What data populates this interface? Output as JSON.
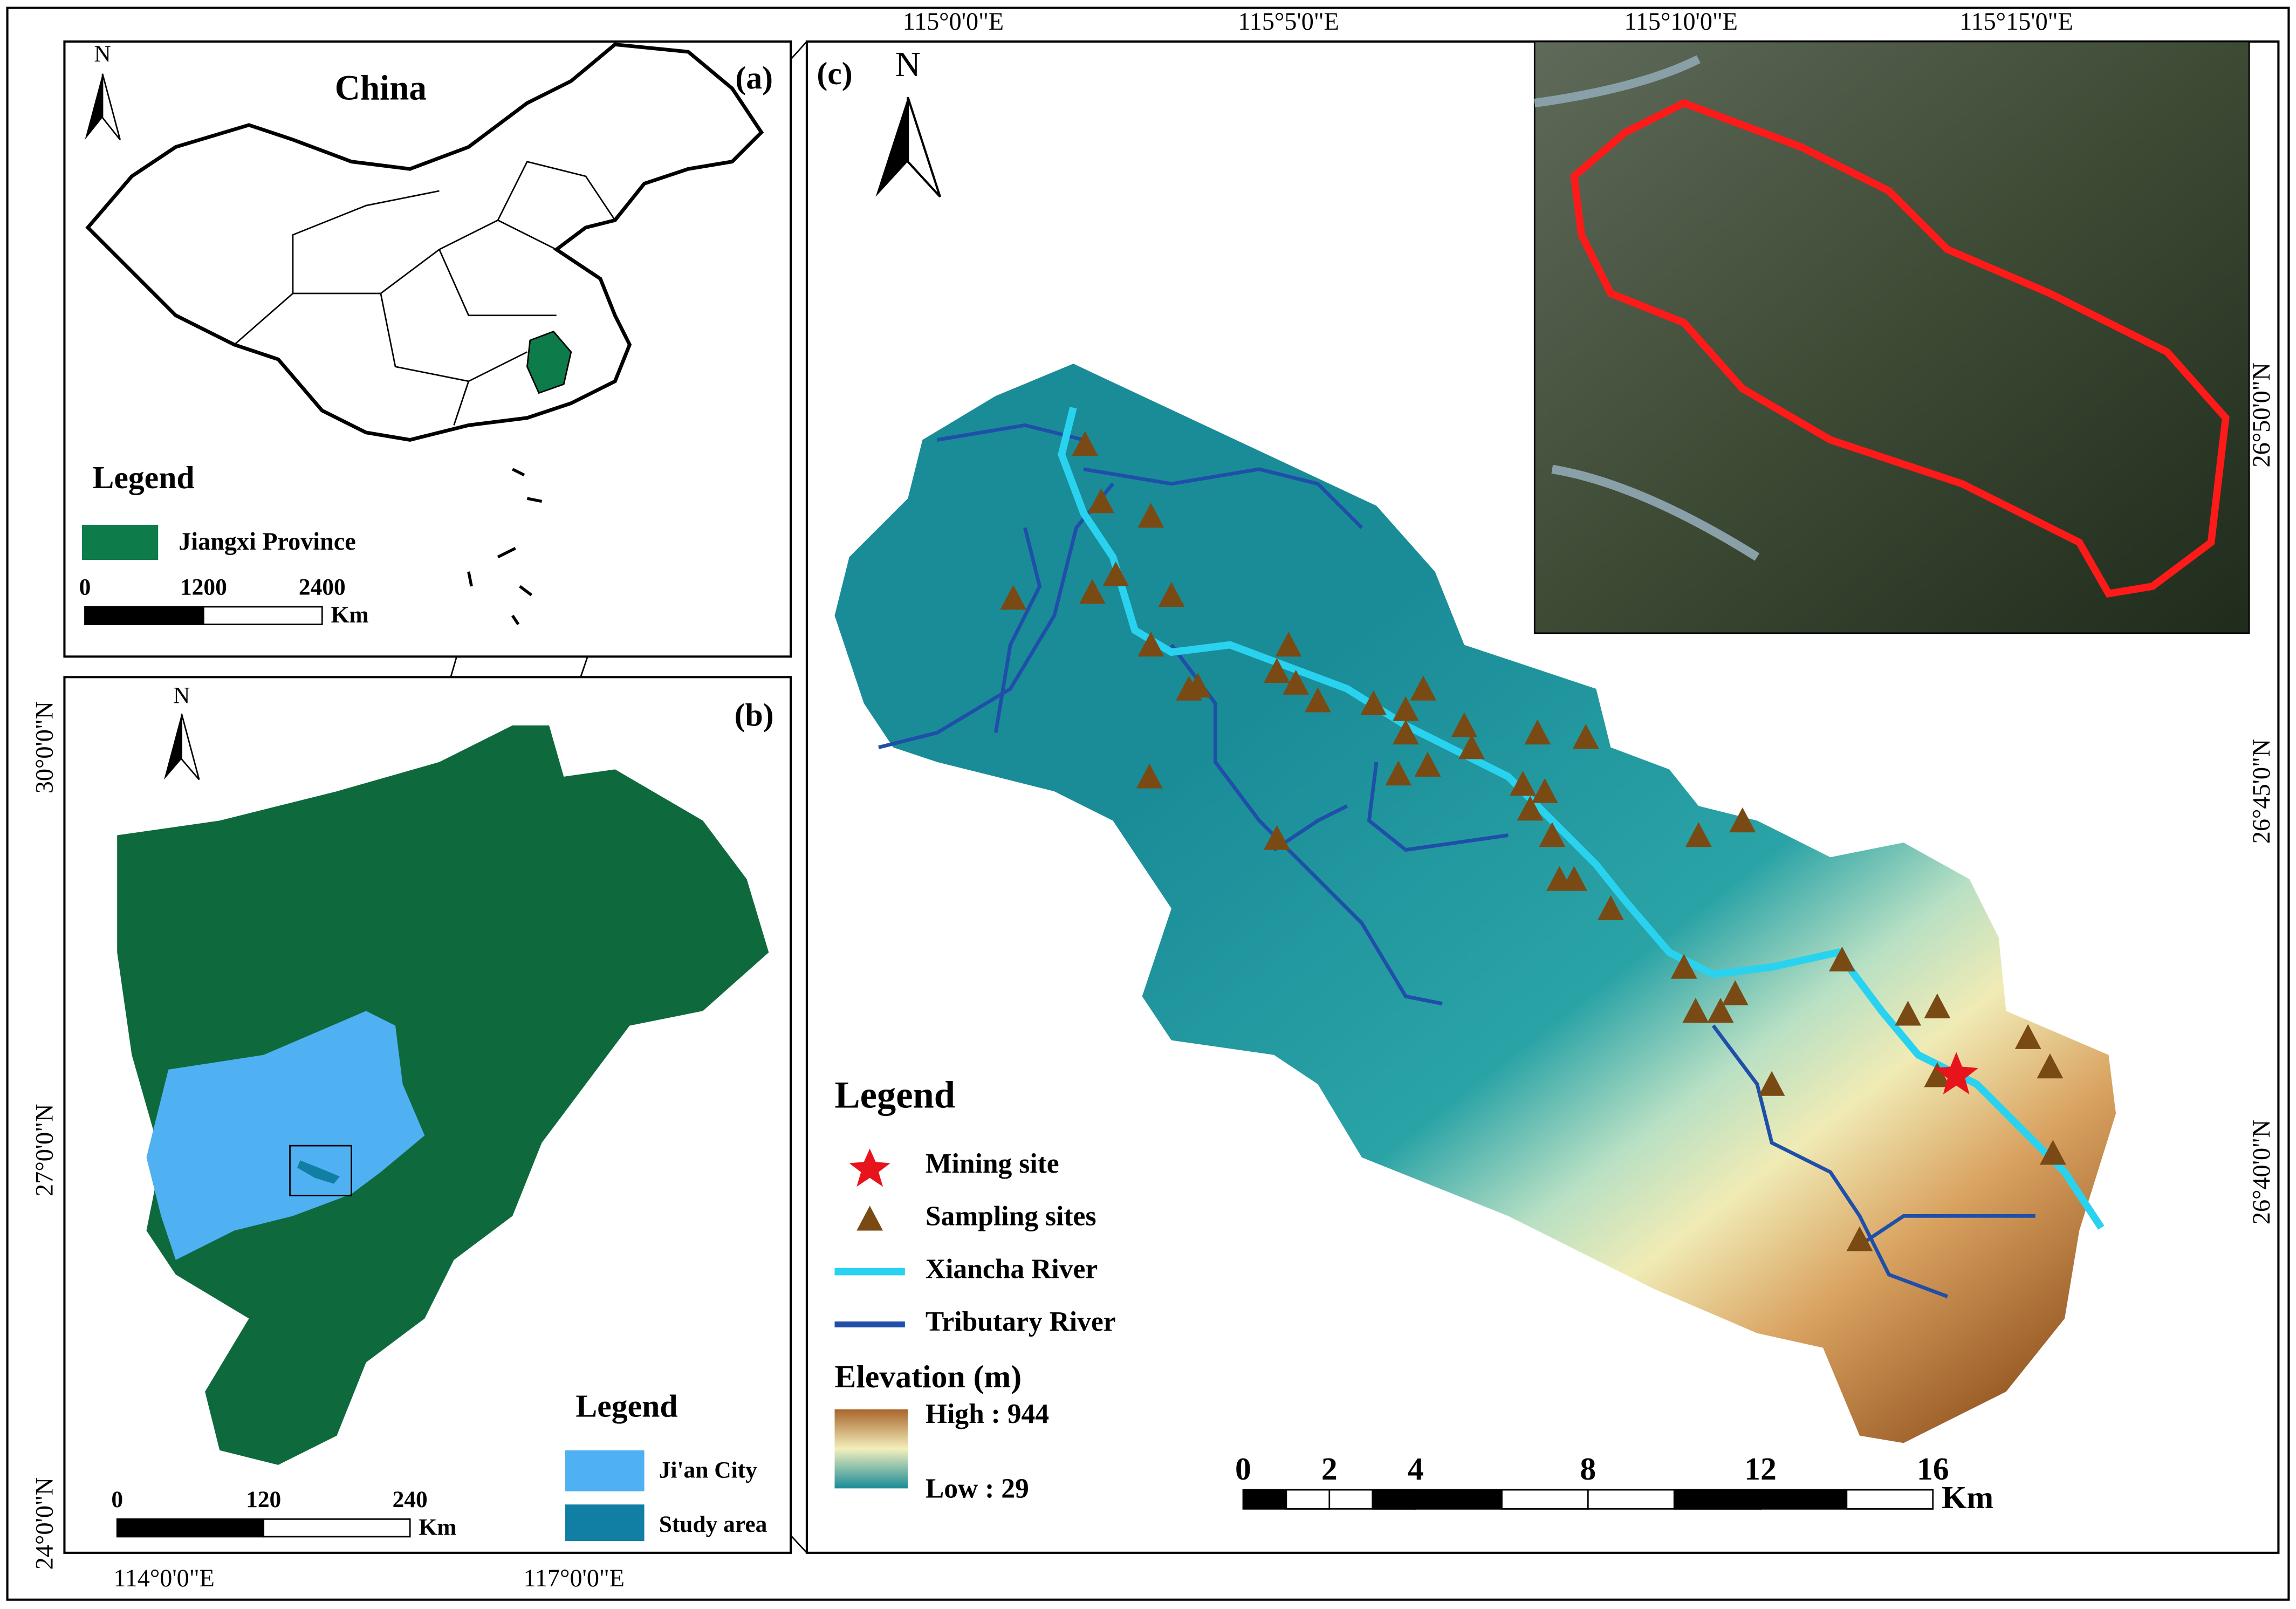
{
  "panel_a": {
    "label": "(a)",
    "title": "China",
    "north": "N",
    "legend": {
      "title": "Legend",
      "items": [
        "Jiangxi Province"
      ]
    },
    "scale": {
      "ticks": [
        0,
        1200,
        2400
      ],
      "unit": "Km"
    }
  },
  "panel_b": {
    "label": "(b)",
    "north": "N",
    "legend": {
      "title": "Legend",
      "items": [
        "Ji'an City",
        "Study area"
      ]
    },
    "scale": {
      "ticks": [
        0,
        120,
        240
      ],
      "unit": "Km"
    },
    "lat_labels": [
      "30°0'0\"N",
      "27°0'0\"N",
      "24°0'0\"N"
    ],
    "lon_labels": [
      "114°0'0\"E",
      "117°0'0\"E"
    ]
  },
  "panel_c": {
    "label": "(c)",
    "north": "N",
    "legend": {
      "title": "Legend",
      "items": [
        "Mining site",
        "Sampling sites",
        "Xiancha River",
        "Tributary River"
      ]
    },
    "elevation": {
      "title": "Elevation (m)",
      "high": "High : 944",
      "low": "Low : 29"
    },
    "scale": {
      "ticks": [
        0,
        2,
        4,
        8,
        12,
        16
      ],
      "unit": "Km"
    },
    "lon_labels": [
      "115°0'0\"E",
      "115°5'0\"E",
      "115°10'0\"E",
      "115°15'0\"E"
    ],
    "lat_labels": [
      "26°50'0\"N",
      "26°45'0\"N",
      "26°40'0\"N"
    ]
  }
}
